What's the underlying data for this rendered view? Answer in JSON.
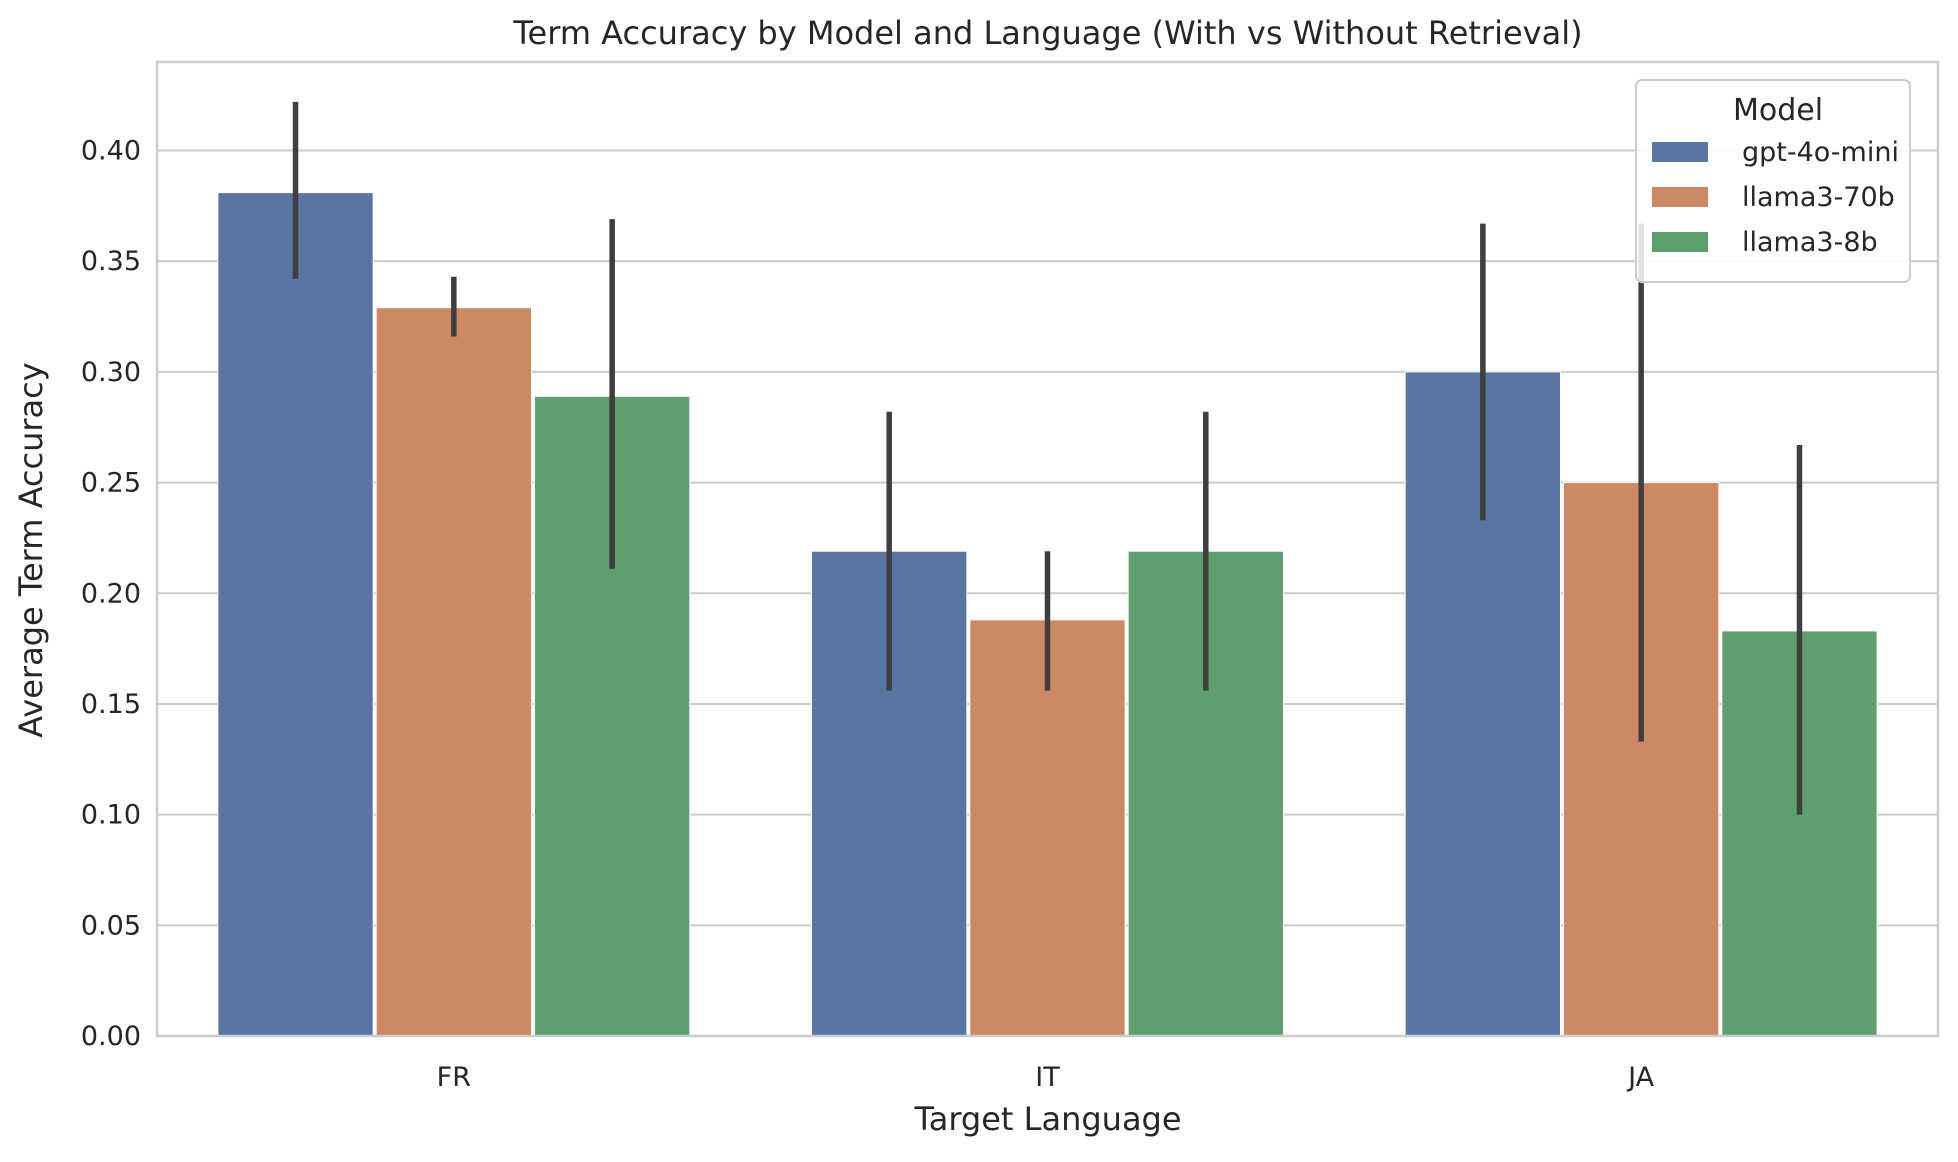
{
  "chart_data": {
    "type": "bar",
    "title": "Term Accuracy by Model and Language (With vs Without Retrieval)",
    "xlabel": "Target Language",
    "ylabel": "Average Term Accuracy",
    "categories": [
      "FR",
      "IT",
      "JA"
    ],
    "ylim": [
      0,
      0.44
    ],
    "yticks": [
      "0.00",
      "0.05",
      "0.10",
      "0.15",
      "0.20",
      "0.25",
      "0.30",
      "0.35",
      "0.40"
    ],
    "grid": "horizontal",
    "legend": {
      "title": "Model",
      "placement": "top-right"
    },
    "series": [
      {
        "name": "gpt-4o-mini",
        "color": "#5875a4",
        "values": [
          0.381,
          0.219,
          0.3
        ],
        "error_low": [
          0.342,
          0.156,
          0.233
        ],
        "error_high": [
          0.422,
          0.282,
          0.367
        ]
      },
      {
        "name": "llama3-70b",
        "color": "#cc8963",
        "values": [
          0.329,
          0.188,
          0.25
        ],
        "error_low": [
          0.316,
          0.156,
          0.133
        ],
        "error_high": [
          0.343,
          0.219,
          0.367
        ]
      },
      {
        "name": "llama3-8b",
        "color": "#5f9e6e",
        "values": [
          0.289,
          0.219,
          0.183
        ],
        "error_low": [
          0.211,
          0.156,
          0.1
        ],
        "error_high": [
          0.369,
          0.282,
          0.267
        ]
      }
    ]
  }
}
